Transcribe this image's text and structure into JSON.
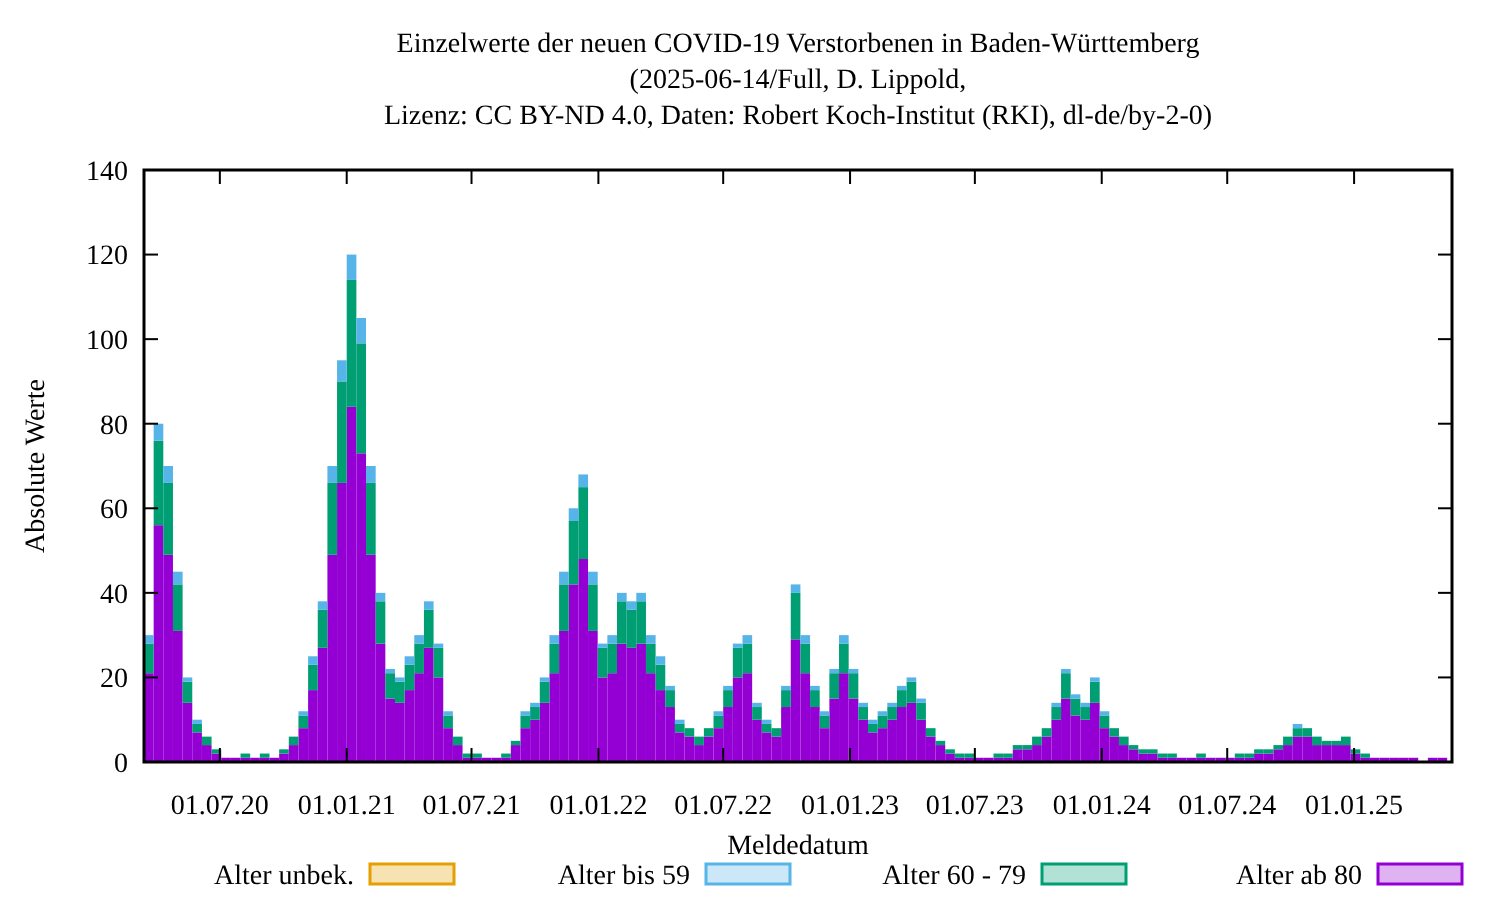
{
  "chart_data": {
    "type": "bar",
    "stacked": true,
    "title": "Einzelwerte der neuen COVID-19 Verstorbenen in Baden-Württemberg",
    "subtitle": "(2025-06-14/Full, D. Lippold,\nLizenz: CC BY-ND 4.0, Daten: Robert Koch-Institut (RKI), dl-de/by-2-0)",
    "xlabel": "Meldedatum",
    "ylabel": "Absolute Werte",
    "legend": "bottom",
    "grid": false,
    "xlim": [
      "2020-03-13",
      "2025-05-23"
    ],
    "xticks": [
      {
        "value": "2020-07-01",
        "label": "01.07.20"
      },
      {
        "value": "2021-01-01",
        "label": "01.01.21"
      },
      {
        "value": "2021-07-01",
        "label": "01.07.21"
      },
      {
        "value": "2022-01-01",
        "label": "01.01.22"
      },
      {
        "value": "2022-07-01",
        "label": "01.07.22"
      },
      {
        "value": "2023-01-01",
        "label": "01.01.23"
      },
      {
        "value": "2023-07-01",
        "label": "01.07.23"
      },
      {
        "value": "2024-01-01",
        "label": "01.01.24"
      },
      {
        "value": "2024-07-01",
        "label": "01.07.24"
      },
      {
        "value": "2025-01-01",
        "label": "01.01.25"
      }
    ],
    "ylim": [
      0,
      140
    ],
    "yticks": [
      0,
      20,
      40,
      60,
      80,
      100,
      120,
      140
    ],
    "x": [
      "2020-03-13",
      "2020-03-27",
      "2020-04-10",
      "2020-04-24",
      "2020-05-08",
      "2020-05-22",
      "2020-06-05",
      "2020-06-19",
      "2020-07-03",
      "2020-07-17",
      "2020-07-31",
      "2020-08-14",
      "2020-08-28",
      "2020-09-11",
      "2020-09-25",
      "2020-10-09",
      "2020-10-23",
      "2020-11-06",
      "2020-11-20",
      "2020-12-04",
      "2020-12-18",
      "2021-01-01",
      "2021-01-15",
      "2021-01-29",
      "2021-02-12",
      "2021-02-26",
      "2021-03-12",
      "2021-03-26",
      "2021-04-09",
      "2021-04-23",
      "2021-05-07",
      "2021-05-21",
      "2021-06-04",
      "2021-06-18",
      "2021-07-02",
      "2021-07-16",
      "2021-07-30",
      "2021-08-13",
      "2021-08-27",
      "2021-09-10",
      "2021-09-24",
      "2021-10-08",
      "2021-10-22",
      "2021-11-05",
      "2021-11-19",
      "2021-12-03",
      "2021-12-17",
      "2021-12-31",
      "2022-01-14",
      "2022-01-28",
      "2022-02-11",
      "2022-02-25",
      "2022-03-11",
      "2022-03-25",
      "2022-04-08",
      "2022-04-22",
      "2022-05-06",
      "2022-05-20",
      "2022-06-03",
      "2022-06-17",
      "2022-07-01",
      "2022-07-15",
      "2022-07-29",
      "2022-08-12",
      "2022-08-26",
      "2022-09-09",
      "2022-09-23",
      "2022-10-07",
      "2022-10-21",
      "2022-11-04",
      "2022-11-18",
      "2022-12-02",
      "2022-12-16",
      "2022-12-30",
      "2023-01-13",
      "2023-01-27",
      "2023-02-10",
      "2023-02-24",
      "2023-03-10",
      "2023-03-24",
      "2023-04-07",
      "2023-04-21",
      "2023-05-05",
      "2023-05-19",
      "2023-06-02",
      "2023-06-16",
      "2023-06-30",
      "2023-07-14",
      "2023-07-28",
      "2023-08-11",
      "2023-08-25",
      "2023-09-08",
      "2023-09-22",
      "2023-10-06",
      "2023-10-20",
      "2023-11-03",
      "2023-11-17",
      "2023-12-01",
      "2023-12-15",
      "2023-12-29",
      "2024-01-12",
      "2024-01-26",
      "2024-02-09",
      "2024-02-23",
      "2024-03-08",
      "2024-03-22",
      "2024-04-05",
      "2024-04-19",
      "2024-05-03",
      "2024-05-17",
      "2024-05-31",
      "2024-06-14",
      "2024-06-28",
      "2024-07-12",
      "2024-07-26",
      "2024-08-09",
      "2024-08-23",
      "2024-09-06",
      "2024-09-20",
      "2024-10-04",
      "2024-10-18",
      "2024-11-01",
      "2024-11-15",
      "2024-11-29",
      "2024-12-13",
      "2024-12-27",
      "2025-01-10",
      "2025-01-24",
      "2025-02-07",
      "2025-02-21",
      "2025-03-07",
      "2025-03-21",
      "2025-04-04",
      "2025-04-18",
      "2025-05-02"
    ],
    "series": [
      {
        "name": "Alter ab 80",
        "color": "#9400d3",
        "values": [
          21,
          56,
          49,
          31,
          14,
          7,
          4,
          2,
          1,
          1,
          1,
          1,
          1,
          1,
          2,
          4,
          8,
          17,
          27,
          49,
          66,
          84,
          73,
          49,
          28,
          15,
          14,
          17,
          21,
          27,
          20,
          8,
          4,
          1,
          1,
          1,
          1,
          1,
          4,
          8,
          10,
          14,
          21,
          31,
          42,
          48,
          31,
          20,
          21,
          28,
          27,
          28,
          21,
          17,
          13,
          7,
          6,
          4,
          6,
          8,
          13,
          20,
          21,
          10,
          7,
          6,
          13,
          29,
          21,
          13,
          8,
          15,
          21,
          15,
          10,
          7,
          8,
          10,
          13,
          14,
          10,
          6,
          4,
          2,
          1,
          1,
          1,
          1,
          1,
          1,
          3,
          3,
          4,
          6,
          10,
          15,
          11,
          10,
          14,
          8,
          6,
          4,
          3,
          2,
          2,
          1,
          1,
          1,
          1,
          1,
          1,
          1,
          1,
          1,
          1,
          2,
          2,
          3,
          4,
          6,
          6,
          4,
          4,
          4,
          4,
          2,
          1,
          1,
          1,
          1,
          1,
          1,
          0,
          1,
          1
        ]
      },
      {
        "name": "Alter 60 - 79",
        "color": "#009e73",
        "values": [
          7,
          20,
          17,
          11,
          5,
          2,
          2,
          1,
          0,
          0,
          1,
          0,
          1,
          0,
          1,
          2,
          3,
          6,
          9,
          17,
          24,
          30,
          26,
          17,
          10,
          6,
          5,
          6,
          7,
          9,
          7,
          3,
          2,
          1,
          1,
          0,
          0,
          1,
          1,
          3,
          3,
          5,
          7,
          11,
          15,
          17,
          11,
          7,
          7,
          10,
          9,
          10,
          7,
          6,
          4,
          2,
          2,
          2,
          2,
          3,
          4,
          7,
          7,
          3,
          2,
          2,
          4,
          11,
          7,
          4,
          3,
          6,
          7,
          6,
          3,
          2,
          3,
          3,
          4,
          5,
          4,
          2,
          1,
          1,
          1,
          1,
          0,
          0,
          1,
          1,
          1,
          1,
          2,
          2,
          3,
          6,
          4,
          3,
          5,
          3,
          2,
          2,
          1,
          1,
          1,
          1,
          1,
          0,
          0,
          1,
          0,
          0,
          0,
          1,
          1,
          1,
          1,
          1,
          2,
          2,
          2,
          2,
          1,
          1,
          2,
          1,
          1,
          0,
          0,
          0,
          0,
          0,
          0,
          0,
          0
        ]
      },
      {
        "name": "Alter bis 59",
        "color": "#56b4e9",
        "values": [
          2,
          4,
          4,
          3,
          1,
          1,
          0,
          0,
          0,
          0,
          0,
          0,
          0,
          0,
          0,
          0,
          1,
          2,
          2,
          4,
          5,
          6,
          6,
          4,
          2,
          1,
          1,
          2,
          2,
          2,
          1,
          1,
          0,
          0,
          0,
          0,
          0,
          0,
          0,
          1,
          1,
          1,
          2,
          3,
          3,
          3,
          3,
          1,
          2,
          2,
          2,
          2,
          2,
          2,
          1,
          1,
          0,
          0,
          0,
          1,
          1,
          1,
          2,
          1,
          1,
          0,
          1,
          2,
          2,
          1,
          1,
          1,
          2,
          1,
          1,
          1,
          1,
          1,
          1,
          1,
          1,
          0,
          0,
          0,
          0,
          0,
          0,
          0,
          0,
          0,
          0,
          0,
          0,
          0,
          1,
          1,
          1,
          1,
          1,
          1,
          0,
          0,
          0,
          0,
          0,
          0,
          0,
          0,
          0,
          0,
          0,
          0,
          0,
          0,
          0,
          0,
          0,
          0,
          0,
          1,
          0,
          0,
          0,
          0,
          0,
          0,
          0,
          0,
          0,
          0,
          0,
          0,
          0,
          0,
          0
        ]
      },
      {
        "name": "Alter unbek.",
        "color": "#e69f00",
        "values": [
          0,
          0,
          0,
          0,
          0,
          0,
          0,
          0,
          0,
          0,
          0,
          0,
          0,
          0,
          0,
          0,
          0,
          0,
          0,
          0,
          0,
          0,
          0,
          0,
          0,
          0,
          0,
          0,
          0,
          0,
          0,
          0,
          0,
          0,
          0,
          0,
          0,
          0,
          0,
          0,
          0,
          0,
          0,
          0,
          0,
          0,
          0,
          0,
          0,
          0,
          0,
          0,
          0,
          0,
          0,
          0,
          0,
          0,
          0,
          0,
          0,
          0,
          0,
          0,
          0,
          0,
          0,
          0,
          0,
          0,
          0,
          0,
          0,
          0,
          0,
          0,
          0,
          0,
          0,
          0,
          0,
          0,
          0,
          0,
          0,
          0,
          0,
          0,
          0,
          0,
          0,
          0,
          0,
          0,
          0,
          0,
          0,
          0,
          0,
          0,
          0,
          0,
          0,
          0,
          0,
          0,
          0,
          0,
          0,
          0,
          0,
          0,
          0,
          0,
          0,
          0,
          0,
          0,
          0,
          0,
          0,
          0,
          0,
          0,
          0,
          0,
          0,
          0,
          0,
          0,
          0,
          0,
          0,
          0,
          0
        ]
      }
    ]
  }
}
